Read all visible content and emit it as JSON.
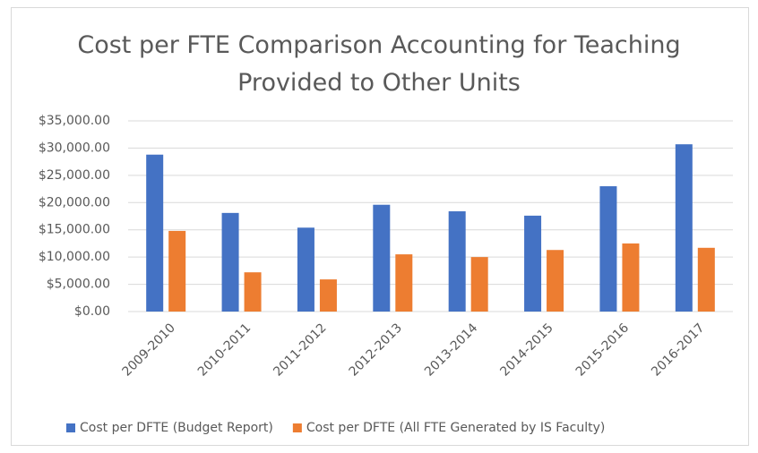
{
  "chart_data": {
    "type": "bar",
    "title": "Cost per FTE Comparison Accounting for Teaching Provided to Other Units",
    "categories": [
      "2009-2010",
      "2010-2011",
      "2011-2012",
      "2012-2013",
      "2013-2014",
      "2014-2015",
      "2015-2016",
      "2016-2017"
    ],
    "series": [
      {
        "name": "Cost per DFTE (Budget Report)",
        "color": "#4472c4",
        "values": [
          28800,
          18100,
          15400,
          19600,
          18400,
          17600,
          23000,
          30700
        ]
      },
      {
        "name": "Cost per DFTE (All FTE Generated by IS Faculty)",
        "color": "#ed7d31",
        "values": [
          14800,
          7200,
          5900,
          10500,
          10000,
          11300,
          12500,
          11700
        ]
      }
    ],
    "ylim": [
      0,
      35000
    ],
    "yticks": [
      {
        "value": 0,
        "label": "$0.00"
      },
      {
        "value": 5000,
        "label": "$5,000.00"
      },
      {
        "value": 10000,
        "label": "$10,000.00"
      },
      {
        "value": 15000,
        "label": "$15,000.00"
      },
      {
        "value": 20000,
        "label": "$20,000.00"
      },
      {
        "value": 25000,
        "label": "$25,000.00"
      },
      {
        "value": 30000,
        "label": "$30,000.00"
      },
      {
        "value": 35000,
        "label": "$35,000.00"
      }
    ],
    "grid": true,
    "legend": "bottom"
  }
}
